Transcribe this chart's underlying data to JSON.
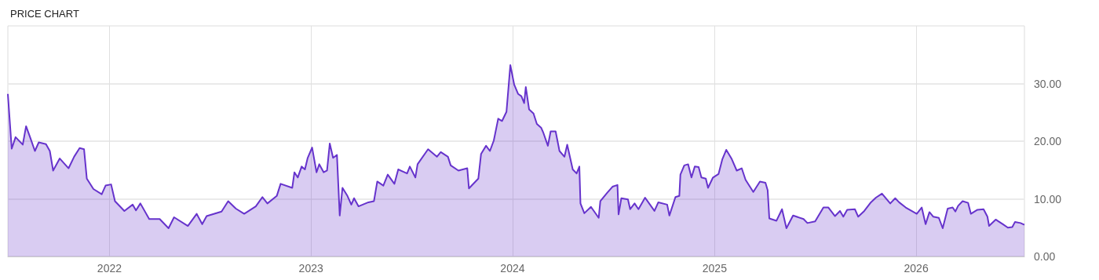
{
  "chart_data": {
    "type": "area",
    "title": "PRICE CHART",
    "x": [
      "2021-07-01",
      "2021-07-08",
      "2021-07-15",
      "2021-07-28",
      "2021-08-03",
      "2021-08-11",
      "2021-08-19",
      "2021-08-26",
      "2021-09-08",
      "2021-09-15",
      "2021-09-21",
      "2021-10-03",
      "2021-10-19",
      "2021-10-29",
      "2021-11-08",
      "2021-11-16",
      "2021-11-21",
      "2021-12-03",
      "2021-12-18",
      "2021-12-25",
      "2022-01-04",
      "2022-01-11",
      "2022-01-28",
      "2022-02-12",
      "2022-02-18",
      "2022-02-26",
      "2022-03-14",
      "2022-04-02",
      "2022-04-18",
      "2022-04-28",
      "2022-05-23",
      "2022-06-08",
      "2022-06-18",
      "2022-06-26",
      "2022-07-23",
      "2022-08-04",
      "2022-08-18",
      "2022-09-02",
      "2022-09-23",
      "2022-10-05",
      "2022-10-14",
      "2022-10-31",
      "2022-11-07",
      "2022-11-28",
      "2022-12-02",
      "2022-12-08",
      "2022-12-15",
      "2022-12-21",
      "2022-12-26",
      "2023-01-03",
      "2023-01-11",
      "2023-01-16",
      "2023-01-24",
      "2023-01-30",
      "2023-02-04",
      "2023-02-10",
      "2023-02-17",
      "2023-02-22",
      "2023-02-27",
      "2023-03-08",
      "2023-03-15",
      "2023-03-20",
      "2023-03-28",
      "2023-04-15",
      "2023-04-25",
      "2023-05-01",
      "2023-05-12",
      "2023-05-20",
      "2023-06-01",
      "2023-06-08",
      "2023-06-24",
      "2023-06-29",
      "2023-07-09",
      "2023-07-13",
      "2023-08-01",
      "2023-08-17",
      "2023-08-24",
      "2023-09-06",
      "2023-09-11",
      "2023-09-25",
      "2023-10-11",
      "2023-10-14",
      "2023-10-31",
      "2023-11-05",
      "2023-11-14",
      "2023-11-21",
      "2023-11-28",
      "2023-12-06",
      "2023-12-13",
      "2023-12-21",
      "2023-12-28",
      "2024-01-04",
      "2024-01-11",
      "2024-01-17",
      "2024-01-22",
      "2024-01-25",
      "2024-01-31",
      "2024-02-08",
      "2024-02-14",
      "2024-02-22",
      "2024-02-26",
      "2024-03-05",
      "2024-03-10",
      "2024-03-19",
      "2024-03-26",
      "2024-04-04",
      "2024-04-09",
      "2024-04-19",
      "2024-04-26",
      "2024-05-01",
      "2024-05-03",
      "2024-05-10",
      "2024-05-22",
      "2024-06-05",
      "2024-06-08",
      "2024-06-20",
      "2024-06-30",
      "2024-07-09",
      "2024-07-11",
      "2024-07-16",
      "2024-07-28",
      "2024-08-01",
      "2024-08-09",
      "2024-08-16",
      "2024-08-28",
      "2024-09-14",
      "2024-09-21",
      "2024-10-07",
      "2024-10-11",
      "2024-10-22",
      "2024-10-29",
      "2024-10-31",
      "2024-11-07",
      "2024-11-14",
      "2024-11-20",
      "2024-11-26",
      "2024-12-03",
      "2024-12-08",
      "2024-12-16",
      "2024-12-20",
      "2024-12-29",
      "2025-01-08",
      "2025-01-15",
      "2025-01-22",
      "2025-02-01",
      "2025-02-10",
      "2025-02-19",
      "2025-02-26",
      "2025-03-12",
      "2025-03-24",
      "2025-04-03",
      "2025-04-07",
      "2025-04-10",
      "2025-04-23",
      "2025-05-03",
      "2025-05-11",
      "2025-05-23",
      "2025-06-11",
      "2025-06-18",
      "2025-07-02",
      "2025-07-17",
      "2025-07-26",
      "2025-08-07",
      "2025-08-16",
      "2025-08-22",
      "2025-08-29",
      "2025-09-12",
      "2025-09-18",
      "2025-09-29",
      "2025-10-11",
      "2025-10-20",
      "2025-10-31",
      "2025-11-15",
      "2025-11-24",
      "2025-12-01",
      "2025-12-13",
      "2026-01-02",
      "2026-01-11",
      "2026-01-18",
      "2026-01-25",
      "2026-02-01",
      "2026-02-11",
      "2026-02-18",
      "2026-02-27",
      "2026-03-08",
      "2026-03-13",
      "2026-03-18",
      "2026-03-26",
      "2026-04-05",
      "2026-04-10",
      "2026-04-22",
      "2026-05-03",
      "2026-05-10",
      "2026-05-13",
      "2026-05-25",
      "2026-06-07",
      "2026-06-16",
      "2026-06-24",
      "2026-06-29",
      "2026-07-09",
      "2026-07-16"
    ],
    "series": [
      {
        "color": "#6633cc",
        "values": [
          28.2,
          18.7,
          20.7,
          19.4,
          22.6,
          20.5,
          18.3,
          19.8,
          19.5,
          18.3,
          14.9,
          17.0,
          15.3,
          17.3,
          18.8,
          18.6,
          13.5,
          11.7,
          10.8,
          12.3,
          12.5,
          9.6,
          7.9,
          9.0,
          8.0,
          9.2,
          6.5,
          6.5,
          4.9,
          6.8,
          5.3,
          7.4,
          5.6,
          7.0,
          7.8,
          9.6,
          8.3,
          7.4,
          8.7,
          10.3,
          9.2,
          10.5,
          12.6,
          11.9,
          14.6,
          13.7,
          15.6,
          15.1,
          17.1,
          18.9,
          14.6,
          16.0,
          14.6,
          14.9,
          19.6,
          17.1,
          17.6,
          7.1,
          11.9,
          10.5,
          9.0,
          10.1,
          8.7,
          9.4,
          9.6,
          13.0,
          12.3,
          14.2,
          12.6,
          15.1,
          14.4,
          15.6,
          13.7,
          16.0,
          18.6,
          17.3,
          18.1,
          17.3,
          15.8,
          14.9,
          15.3,
          11.8,
          13.5,
          17.8,
          19.2,
          18.3,
          20.1,
          23.9,
          23.5,
          25.1,
          33.2,
          29.8,
          28.2,
          27.8,
          26.6,
          29.4,
          25.5,
          24.8,
          23.0,
          22.3,
          21.4,
          19.2,
          21.7,
          21.7,
          18.3,
          17.3,
          19.4,
          15.1,
          14.4,
          15.6,
          9.2,
          7.5,
          8.6,
          6.7,
          9.6,
          11.0,
          12.1,
          12.4,
          7.3,
          10.1,
          9.9,
          8.2,
          9.2,
          8.2,
          10.2,
          7.9,
          9.4,
          9.0,
          7.1,
          10.3,
          10.5,
          14.2,
          15.8,
          16.0,
          13.7,
          15.6,
          15.5,
          13.7,
          13.5,
          11.9,
          13.7,
          14.3,
          16.9,
          18.5,
          16.9,
          14.9,
          15.3,
          13.3,
          11.2,
          13.0,
          12.8,
          11.5,
          6.6,
          6.2,
          8.2,
          4.9,
          7.1,
          6.5,
          5.8,
          6.1,
          8.5,
          8.5,
          7.0,
          7.9,
          6.9,
          8.1,
          8.2,
          6.9,
          7.9,
          9.4,
          10.2,
          10.9,
          9.2,
          10.1,
          9.4,
          8.5,
          7.4,
          8.5,
          5.6,
          7.7,
          6.9,
          6.7,
          4.9,
          8.3,
          8.5,
          7.8,
          8.8,
          9.6,
          9.3,
          7.4,
          8.1,
          8.2,
          6.9,
          5.3,
          6.4,
          5.6,
          5.0,
          5.1,
          6.0,
          5.8,
          5.5
        ]
      }
    ],
    "xlim": [
      "2021-07-01",
      "2026-07-16"
    ],
    "xticks": [
      "2022",
      "2023",
      "2024",
      "2025",
      "2026"
    ],
    "ylim": [
      0,
      40
    ],
    "yticks": [
      {
        "value": 0,
        "label": "0.00"
      },
      {
        "value": 10,
        "label": "10.00"
      },
      {
        "value": 20,
        "label": "20.00"
      },
      {
        "value": 30,
        "label": "30.00"
      }
    ],
    "grid": true
  }
}
